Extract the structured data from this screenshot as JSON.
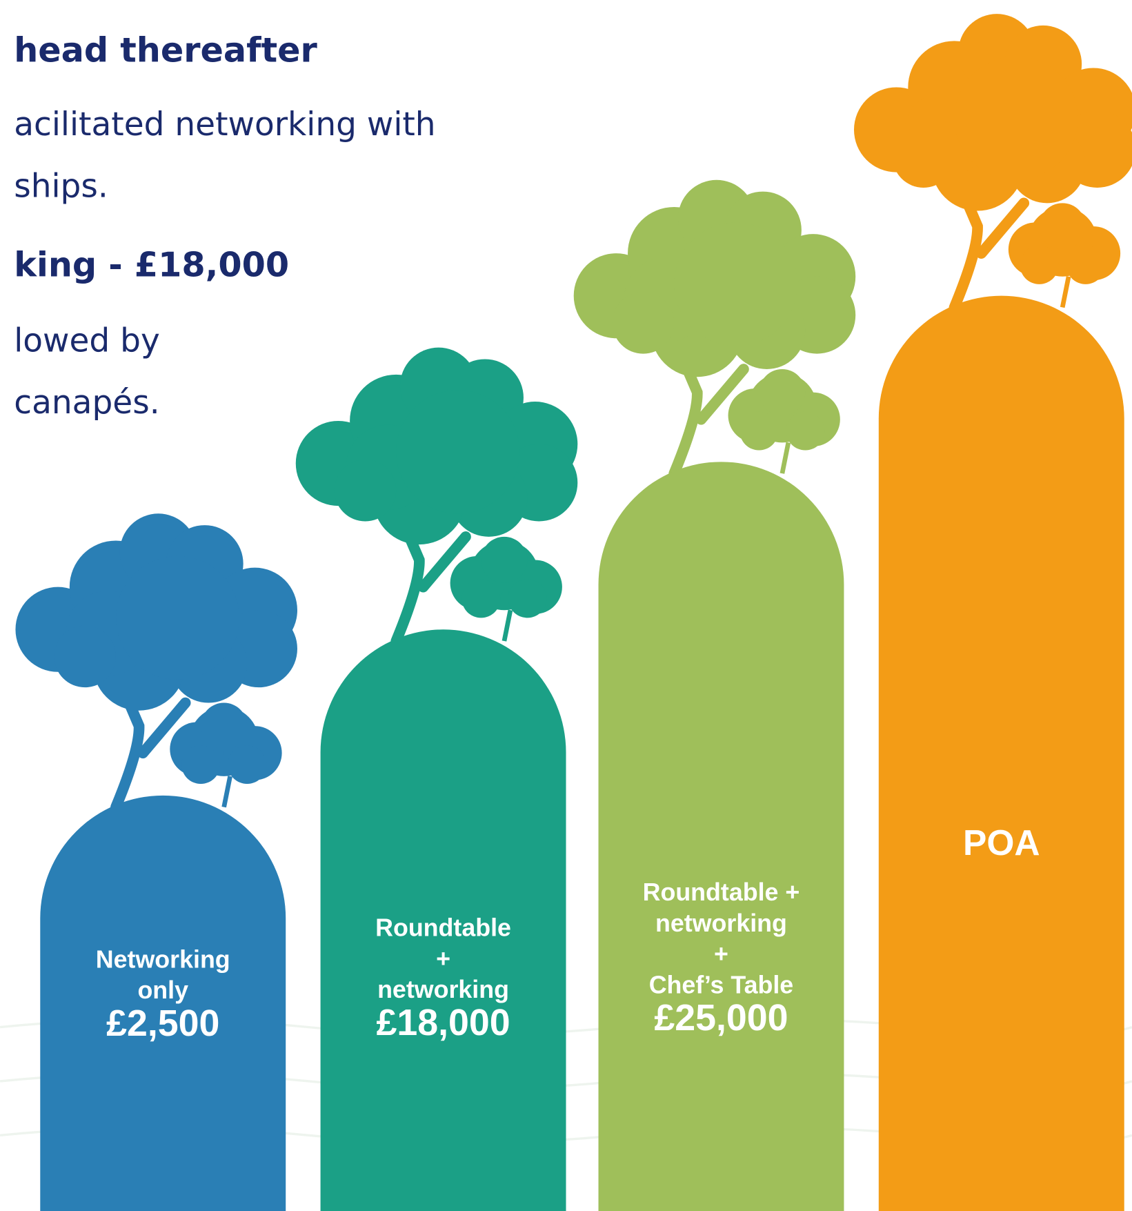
{
  "intro": {
    "lines": [
      {
        "text": "head thereafter",
        "bold": true
      },
      {
        "text": "acilitated networking with",
        "bold": false
      },
      {
        "text": "ships.",
        "bold": false
      },
      {
        "text": "king - £18,000",
        "bold": true
      },
      {
        "text": "lowed by",
        "bold": false
      },
      {
        "text": "canapés.",
        "bold": false
      }
    ]
  },
  "tiers": [
    {
      "lines": [
        "Networking",
        "only"
      ],
      "price": "£2,500",
      "color": "#2a7fb5"
    },
    {
      "lines": [
        "Roundtable",
        "+",
        "networking"
      ],
      "price": "£18,000",
      "color": "#1ba086"
    },
    {
      "lines": [
        "Roundtable +",
        "networking",
        "+",
        "Chef’s Table"
      ],
      "price": "£25,000",
      "color": "#9fbf5a"
    },
    {
      "price": "POA",
      "color": "#f39c16"
    }
  ]
}
